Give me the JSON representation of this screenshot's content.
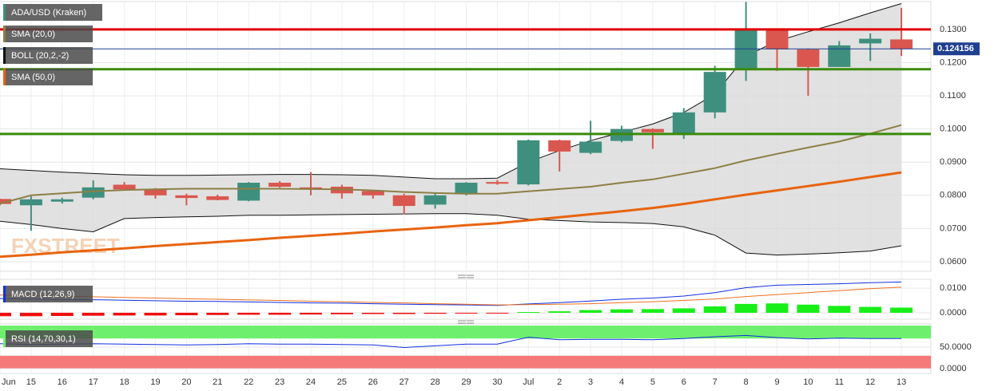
{
  "chart_data": [
    {
      "type": "candlestick",
      "title": "ADA/USD (Kraken)",
      "watermark": "FXSTREET",
      "categories": [
        "Jun",
        "15",
        "16",
        "17",
        "18",
        "19",
        "20",
        "21",
        "22",
        "23",
        "24",
        "25",
        "26",
        "27",
        "28",
        "29",
        "30",
        "Jul",
        "2",
        "3",
        "4",
        "5",
        "6",
        "7",
        "8",
        "9",
        "10",
        "11",
        "12",
        "13"
      ],
      "open": [
        0.0789,
        0.077,
        0.0781,
        0.0793,
        0.0832,
        0.0818,
        0.08,
        0.0797,
        0.0784,
        0.0838,
        0.0824,
        0.0826,
        0.0813,
        0.08,
        0.0772,
        0.0803,
        0.084,
        0.0833,
        0.0966,
        0.0928,
        0.0964,
        0.1,
        0.0985,
        0.105,
        0.1178,
        0.1298,
        0.124,
        0.1187,
        0.1258,
        0.127
      ],
      "high": [
        0.079,
        0.0797,
        0.0793,
        0.0845,
        0.084,
        0.0822,
        0.0805,
        0.0802,
        0.084,
        0.0843,
        0.087,
        0.0832,
        0.0815,
        0.0805,
        0.0808,
        0.084,
        0.0846,
        0.0968,
        0.0968,
        0.1025,
        0.101,
        0.1002,
        0.1063,
        0.119,
        0.1383,
        0.13,
        0.1243,
        0.1265,
        0.1288,
        0.1365
      ],
      "low": [
        0.077,
        0.0693,
        0.0775,
        0.0788,
        0.0815,
        0.079,
        0.077,
        0.0785,
        0.0782,
        0.0823,
        0.08,
        0.079,
        0.079,
        0.0743,
        0.076,
        0.08,
        0.0832,
        0.083,
        0.0872,
        0.0924,
        0.096,
        0.094,
        0.097,
        0.1032,
        0.1145,
        0.1175,
        0.11,
        0.1187,
        0.1205,
        0.122
      ],
      "close": [
        0.0774,
        0.0788,
        0.0788,
        0.0824,
        0.0818,
        0.08,
        0.0792,
        0.0786,
        0.0838,
        0.0826,
        0.082,
        0.0806,
        0.08,
        0.0768,
        0.08,
        0.0838,
        0.0835,
        0.0966,
        0.0932,
        0.0962,
        0.1,
        0.099,
        0.105,
        0.1172,
        0.13,
        0.124,
        0.1187,
        0.1252,
        0.1272,
        0.124156
      ],
      "up_color": "#3f8f7f",
      "down_color": "#d9574f",
      "overlays": [
        {
          "name": "SMA (20,0)",
          "color": "#8c7f45",
          "values": [
            0.0775,
            0.08,
            0.0806,
            0.0812,
            0.0816,
            0.0818,
            0.082,
            0.082,
            0.082,
            0.082,
            0.0819,
            0.0818,
            0.0815,
            0.081,
            0.0807,
            0.0805,
            0.0805,
            0.0812,
            0.0819,
            0.0826,
            0.0838,
            0.0848,
            0.0865,
            0.0882,
            0.0905,
            0.0925,
            0.0944,
            0.0962,
            0.0986,
            0.1012
          ]
        },
        {
          "name": "BOLL (20,2,-2)",
          "color": "#111111",
          "fill": "#d9d9d9",
          "upper": [
            0.088,
            0.0875,
            0.087,
            0.0866,
            0.0862,
            0.086,
            0.086,
            0.0861,
            0.0862,
            0.0863,
            0.0863,
            0.0862,
            0.086,
            0.0855,
            0.085,
            0.085,
            0.0852,
            0.09,
            0.0935,
            0.0965,
            0.099,
            0.1015,
            0.105,
            0.1105,
            0.122,
            0.1265,
            0.1293,
            0.132,
            0.135,
            0.1378
          ],
          "lower": [
            0.0722,
            0.0712,
            0.07,
            0.069,
            0.073,
            0.0733,
            0.0735,
            0.0737,
            0.074,
            0.074,
            0.0741,
            0.0742,
            0.0743,
            0.0744,
            0.0745,
            0.0745,
            0.074,
            0.0728,
            0.0724,
            0.072,
            0.0718,
            0.0715,
            0.0705,
            0.068,
            0.0626,
            0.062,
            0.0623,
            0.0627,
            0.0632,
            0.0648
          ]
        },
        {
          "name": "SMA (50,0)",
          "color": "#e8640f",
          "values": [
            0.0615,
            0.0621,
            0.0628,
            0.0634,
            0.064,
            0.0647,
            0.0653,
            0.0659,
            0.0665,
            0.0672,
            0.0678,
            0.0684,
            0.0691,
            0.0697,
            0.0703,
            0.071,
            0.0716,
            0.0725,
            0.0734,
            0.0743,
            0.0752,
            0.0762,
            0.0774,
            0.0788,
            0.0802,
            0.0815,
            0.0828,
            0.0841,
            0.0855,
            0.0869
          ]
        }
      ],
      "levels": [
        {
          "value": 0.13,
          "color": "#e00000"
        },
        {
          "value": 0.118,
          "color": "#3a8a0a"
        },
        {
          "value": 0.0985,
          "color": "#3a8a0a"
        }
      ],
      "last_price": 0.124156,
      "last_price_color": "#1f3f8f",
      "ylim": [
        0.0571,
        0.1384
      ],
      "yticks": [
        {
          "value": 0.06,
          "label": "0.0600"
        },
        {
          "value": 0.07,
          "label": "0.0700"
        },
        {
          "value": 0.08,
          "label": "0.0800"
        },
        {
          "value": 0.09,
          "label": "0.0900"
        },
        {
          "value": 0.1,
          "label": "0.1000"
        },
        {
          "value": 0.11,
          "label": "0.1100"
        },
        {
          "value": 0.12,
          "label": "0.1200"
        },
        {
          "value": 0.13,
          "label": "0.1300"
        }
      ],
      "grid": true
    },
    {
      "type": "macd",
      "title": "MACD (12,26,9)",
      "series": [
        {
          "color": "#1030e0",
          "values": [
            0.0058,
            0.0056,
            0.0054,
            0.0053,
            0.0051,
            0.0049,
            0.0047,
            0.0046,
            0.0044,
            0.0042,
            0.004,
            0.0039,
            0.0037,
            0.0035,
            0.0033,
            0.0032,
            0.003,
            0.0036,
            0.0041,
            0.0048,
            0.0055,
            0.006,
            0.0068,
            0.0082,
            0.0102,
            0.0112,
            0.0115,
            0.0118,
            0.0122,
            0.0125
          ]
        },
        {
          "color": "#f07020",
          "values": [
            0.0072,
            0.007,
            0.0067,
            0.0065,
            0.0062,
            0.006,
            0.0057,
            0.0055,
            0.0052,
            0.005,
            0.0047,
            0.0045,
            0.0042,
            0.004,
            0.0037,
            0.0035,
            0.0032,
            0.0033,
            0.0035,
            0.0037,
            0.0041,
            0.0045,
            0.005,
            0.0056,
            0.0066,
            0.0074,
            0.0082,
            0.009,
            0.0098,
            0.0104
          ]
        }
      ],
      "histogram": [
        -0.0014,
        -0.0014,
        -0.0013,
        -0.0012,
        -0.0011,
        -0.0011,
        -0.001,
        -0.0009,
        -0.0008,
        -0.0008,
        -0.0007,
        -0.0006,
        -0.0005,
        -0.0005,
        -0.0004,
        -0.0003,
        -0.0002,
        0.0003,
        0.0006,
        0.0011,
        0.0014,
        0.0015,
        0.0018,
        0.0026,
        0.0036,
        0.0038,
        0.0033,
        0.0028,
        0.0024,
        0.0021
      ],
      "positive_color": "#18ee18",
      "negative_color": "#ee1010",
      "ylim": [
        -0.0026,
        0.0136
      ],
      "yticks": [
        {
          "value": 0,
          "label": "0.0000"
        },
        {
          "value": 0.01,
          "label": "0.0100"
        }
      ]
    },
    {
      "type": "rsi",
      "title": "RSI (14,70,30,1)",
      "color": "#1030e0",
      "values": [
        58,
        56,
        57,
        58,
        57,
        56,
        55,
        56,
        58,
        57,
        57,
        56,
        55,
        49,
        53,
        57,
        57,
        73,
        67,
        68,
        68,
        67,
        70,
        74,
        77,
        72,
        69,
        71,
        70,
        70
      ],
      "overbought": 70,
      "oversold": 30,
      "overbought_color": "#6ef06e",
      "oversold_color": "#f47a7a",
      "ylim": [
        0,
        100
      ],
      "yticks": [
        {
          "value": 0,
          "label": "0.0000"
        },
        {
          "value": 50,
          "label": "50.0000"
        }
      ]
    }
  ]
}
